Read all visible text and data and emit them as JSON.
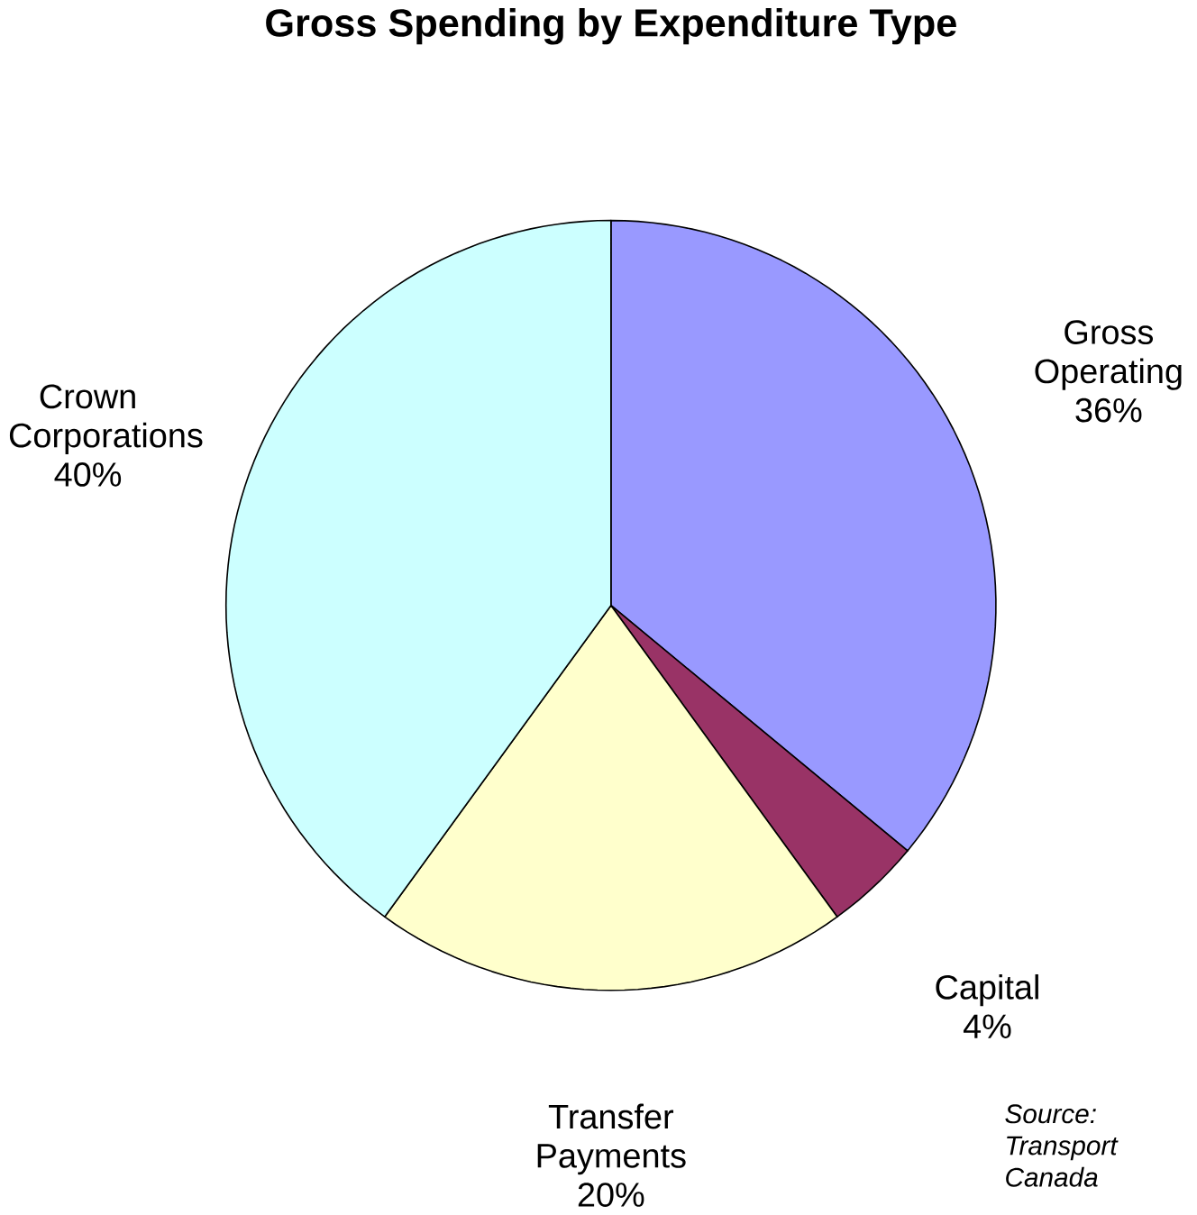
{
  "chart_data": {
    "type": "pie",
    "title": "Gross Spending by Expenditure Type",
    "categories": [
      "Gross Operating",
      "Capital",
      "Transfer Payments",
      "Crown Corporations"
    ],
    "values": [
      36,
      4,
      20,
      40
    ],
    "value_labels": [
      "36%",
      "4%",
      "20%",
      "40%"
    ],
    "colors": [
      "#9999ff",
      "#993366",
      "#ffffcc",
      "#ccffff"
    ],
    "annotations": [
      "*Source: Transport Canada*"
    ]
  }
}
